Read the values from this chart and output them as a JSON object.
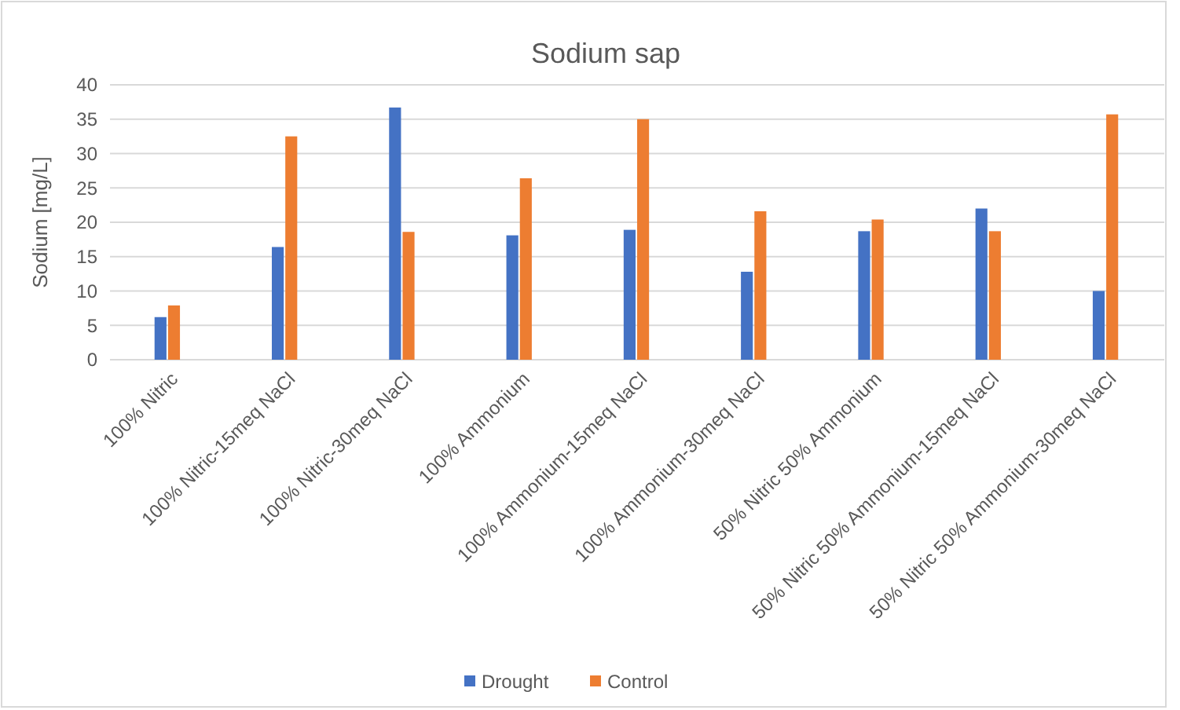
{
  "chart_data": {
    "type": "bar",
    "title": "Sodium sap",
    "ylabel": "Sodium [mg/L]",
    "categories": [
      "100% Nitric",
      "100% Nitric-15meq NaCl",
      "100% Nitric-30meq NaCl",
      "100% Ammonium",
      "100% Ammonium-15meq NaCl",
      "100% Ammonium-30meq NaCl",
      "50% Nitric 50% Ammonium",
      "50% Nitric 50% Ammonium-15meq NaCl",
      "50% Nitric 50% Ammonium-30meq NaCl"
    ],
    "series": [
      {
        "name": "Drought",
        "color": "#4472c4",
        "values": [
          6.2,
          16.4,
          36.7,
          18.1,
          18.9,
          12.8,
          18.7,
          22.0,
          10.0
        ]
      },
      {
        "name": "Control",
        "color": "#ed7d31",
        "values": [
          7.9,
          32.5,
          18.6,
          26.4,
          35.0,
          21.6,
          20.4,
          18.7,
          35.7
        ]
      }
    ],
    "ylim": [
      0,
      40
    ],
    "yticks": [
      0,
      5,
      10,
      15,
      20,
      25,
      30,
      35,
      40
    ],
    "grid": "y",
    "legend": "bottom"
  }
}
